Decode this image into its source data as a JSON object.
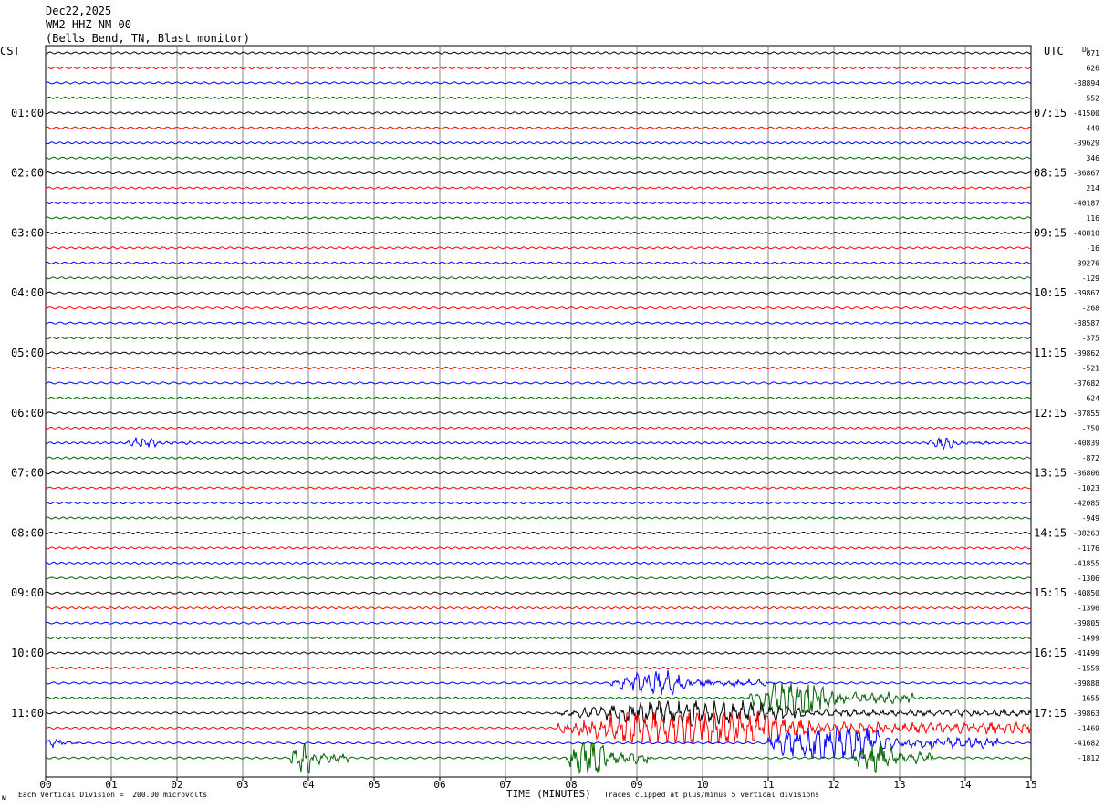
{
  "header": {
    "date": "Dec22,2025",
    "station": "WM2 HHZ NM 00",
    "location": "(Bells Bend, TN, Blast monitor)"
  },
  "left_timezone": "CST",
  "right_timezone": "UTC",
  "dc_label": "DC",
  "footer": {
    "scale_note": "Each Vertical Division =  200.00 microvolts",
    "axis_title": "TIME (MINUTES)",
    "clip_note": "Traces clipped at plus/minus 5 vertical divisions",
    "corner_mark": "ᴍ"
  },
  "colors": {
    "trace_cycle": [
      "#000000",
      "#ff0000",
      "#0000ff",
      "#006400"
    ],
    "grid": "#888888"
  },
  "chart_data": {
    "type": "line",
    "title": "WM2 HHZ NM 00",
    "xlabel": "TIME (MINUTES)",
    "x_ticks": [
      "00",
      "01",
      "02",
      "03",
      "04",
      "05",
      "06",
      "07",
      "08",
      "09",
      "10",
      "11",
      "12",
      "13",
      "14",
      "15"
    ],
    "xlim": [
      0,
      15
    ],
    "left_hour_labels": [
      "01:00",
      "02:00",
      "03:00",
      "04:00",
      "05:00",
      "06:00",
      "07:00",
      "08:00",
      "09:00",
      "10:00",
      "11:00"
    ],
    "right_hour_labels": [
      "07:15",
      "08:15",
      "09:15",
      "10:15",
      "11:15",
      "12:15",
      "13:15",
      "14:15",
      "15:15",
      "16:15",
      "17:15"
    ],
    "grid": true,
    "row_minutes": 15,
    "row_count": 48,
    "dc_offsets": [
      "671",
      "626",
      "-38894",
      "552",
      "-41500",
      "449",
      "-39629",
      "346",
      "-36867",
      "214",
      "-40187",
      "116",
      "-40810",
      "-16",
      "-39276",
      "-129",
      "-39867",
      "-268",
      "-38587",
      "-375",
      "-39862",
      "-521",
      "-37682",
      "-624",
      "-37855",
      "-759",
      "-40839",
      "-872",
      "-36806",
      "-1023",
      "-42085",
      "-949",
      "-38263",
      "-1176",
      "-41855",
      "-1306",
      "-40850",
      "-1396",
      "-39805",
      "-1499",
      "-41499",
      "-1559",
      "-39888",
      "-1655",
      "-39863",
      "-1469",
      "-41682",
      "-1812"
    ],
    "events": [
      {
        "row": 26,
        "start_min": 1.2,
        "end_min": 2.2,
        "amplitude_div": 1.4
      },
      {
        "row": 26,
        "start_min": 13.4,
        "end_min": 14.4,
        "amplitude_div": 1.4
      },
      {
        "row": 42,
        "start_min": 8.6,
        "end_min": 11.0,
        "amplitude_div": 3.0
      },
      {
        "row": 43,
        "start_min": 10.7,
        "end_min": 13.2,
        "amplitude_div": 5.0
      },
      {
        "row": 44,
        "start_min": 7.8,
        "end_min": 15.0,
        "amplitude_div": 3.0
      },
      {
        "row": 45,
        "start_min": 7.8,
        "end_min": 15.0,
        "amplitude_div": 5.0
      },
      {
        "row": 46,
        "start_min": 0.0,
        "end_min": 0.5,
        "amplitude_div": 1.5
      },
      {
        "row": 46,
        "start_min": 11.0,
        "end_min": 14.5,
        "amplitude_div": 5.0
      },
      {
        "row": 47,
        "start_min": 12.3,
        "end_min": 13.5,
        "amplitude_div": 5.0
      },
      {
        "row": 47,
        "start_min": 3.7,
        "end_min": 4.6,
        "amplitude_div": 4.0
      },
      {
        "row": 47,
        "start_min": 7.9,
        "end_min": 9.2,
        "amplitude_div": 5.0
      }
    ]
  }
}
